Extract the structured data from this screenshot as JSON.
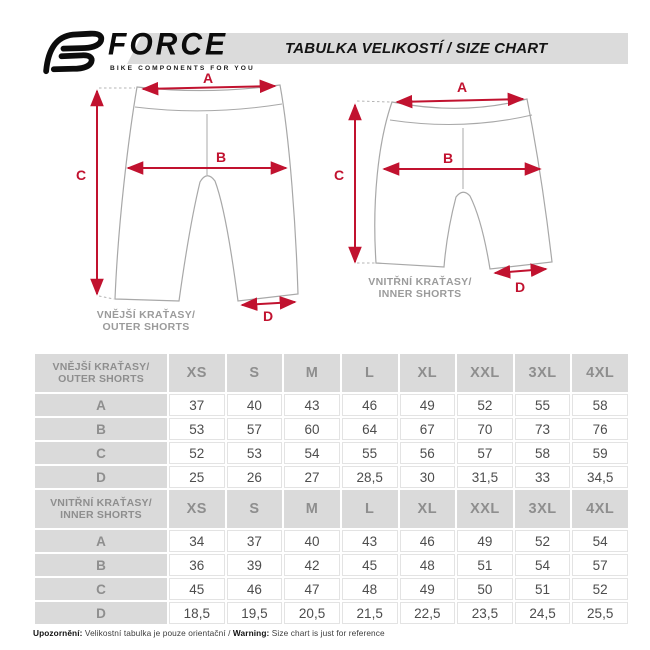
{
  "header": {
    "brand": {
      "name": "FORCE",
      "tagline": "BIKE COMPONENTS FOR YOU"
    },
    "title": "TABULKA VELIKOSTÍ / SIZE CHART"
  },
  "diagrams": [
    {
      "caption_line1": "VNĚJŠÍ KRAŤASY/",
      "caption_line2": "OUTER SHORTS",
      "labels": {
        "a": "A",
        "b": "B",
        "c": "C",
        "d": "D"
      }
    },
    {
      "caption_line1": "VNITŘNÍ KRAŤASY/",
      "caption_line2": "INNER SHORTS",
      "labels": {
        "a": "A",
        "b": "B",
        "c": "C",
        "d": "D"
      }
    }
  ],
  "size_table": {
    "sizes": [
      "XS",
      "S",
      "M",
      "L",
      "XL",
      "XXL",
      "3XL",
      "4XL"
    ],
    "sections": [
      {
        "label_line1": "VNĚJŠÍ KRAŤASY/",
        "label_line2": "OUTER SHORTS",
        "rows": [
          {
            "label": "A",
            "values": [
              "37",
              "40",
              "43",
              "46",
              "49",
              "52",
              "55",
              "58"
            ]
          },
          {
            "label": "B",
            "values": [
              "53",
              "57",
              "60",
              "64",
              "67",
              "70",
              "73",
              "76"
            ]
          },
          {
            "label": "C",
            "values": [
              "52",
              "53",
              "54",
              "55",
              "56",
              "57",
              "58",
              "59"
            ]
          },
          {
            "label": "D",
            "values": [
              "25",
              "26",
              "27",
              "28,5",
              "30",
              "31,5",
              "33",
              "34,5"
            ]
          }
        ]
      },
      {
        "label_line1": "VNITŘNÍ KRAŤASY/",
        "label_line2": "INNER SHORTS",
        "rows": [
          {
            "label": "A",
            "values": [
              "34",
              "37",
              "40",
              "43",
              "46",
              "49",
              "52",
              "54"
            ]
          },
          {
            "label": "B",
            "values": [
              "36",
              "39",
              "42",
              "45",
              "48",
              "51",
              "54",
              "57"
            ]
          },
          {
            "label": "C",
            "values": [
              "45",
              "46",
              "47",
              "48",
              "49",
              "50",
              "51",
              "52"
            ]
          },
          {
            "label": "D",
            "values": [
              "18,5",
              "19,5",
              "20,5",
              "21,5",
              "22,5",
              "23,5",
              "24,5",
              "25,5"
            ]
          }
        ]
      }
    ]
  },
  "footer": {
    "note_cs_label": "Upozornění:",
    "note_cs": " Velikostní tabulka je pouze orientační / ",
    "note_en_label": "Warning:",
    "note_en": " Size chart is just for reference"
  },
  "colors": {
    "accent_red": "#c1122f",
    "band_gray": "#dbdbdb",
    "cell_gray": "#dadada",
    "table_label_text": "#8e8e8e",
    "value_text": "#4d4d4d",
    "outline_gray": "#a8a8a8"
  }
}
